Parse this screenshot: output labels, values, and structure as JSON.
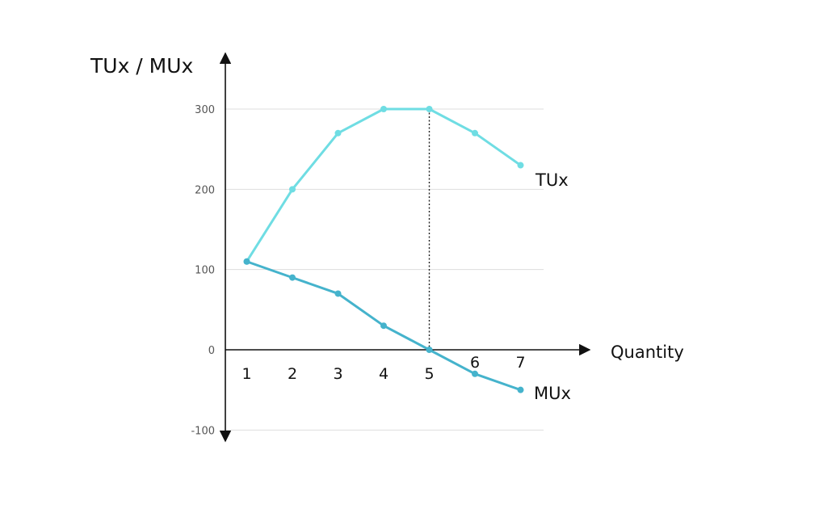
{
  "chart_data": {
    "type": "line",
    "title": "",
    "ylabel": "TUx / MUx",
    "xlabel": "Quantity",
    "categories": [
      "1",
      "2",
      "3",
      "4",
      "5",
      "6",
      "7"
    ],
    "x": [
      1,
      2,
      3,
      4,
      5,
      6,
      7
    ],
    "yticks": [
      -100,
      0,
      100,
      200,
      300
    ],
    "ylim": [
      -110,
      345
    ],
    "grid": true,
    "series": [
      {
        "name": "TUx",
        "values": [
          110,
          200,
          270,
          300,
          300,
          270,
          230
        ],
        "color": "#6fdde3"
      },
      {
        "name": "MUx",
        "values": [
          110,
          90,
          70,
          30,
          0,
          -30,
          -50
        ],
        "color": "#45b3cc"
      }
    ],
    "annotations": [
      {
        "type": "vertical-dotted-line",
        "x": 5,
        "from": 0,
        "to": 300
      }
    ]
  }
}
